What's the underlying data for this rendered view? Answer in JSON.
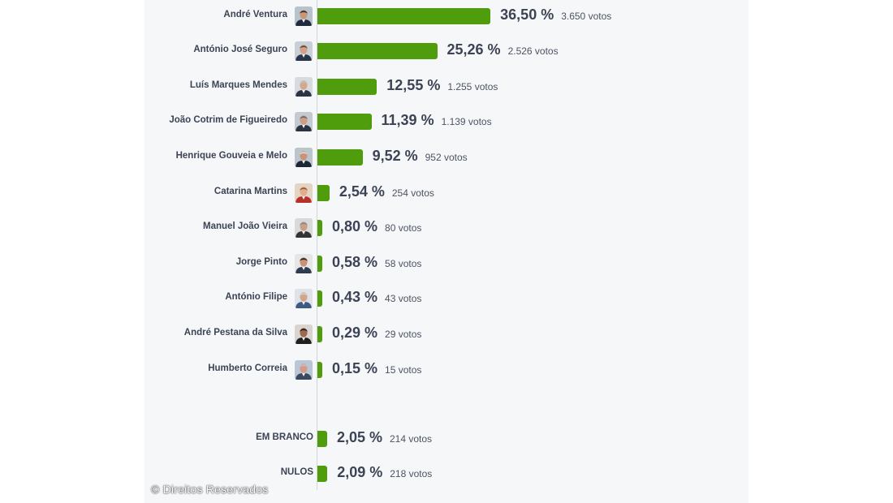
{
  "chart_data": {
    "type": "bar",
    "orientation": "horizontal",
    "colors": {
      "bar": "#4f9c0d",
      "text": "#3b4354",
      "panel": "#f6f7f9"
    },
    "candidates": [
      {
        "name": "André Ventura",
        "percent": 36.5,
        "percent_label": "36,50 %",
        "votes_label": "3.650 votos",
        "avatar": {
          "bg": "#b8c2cc",
          "skin": "#c99676",
          "hair": "#3a2a20",
          "suit": "#1f2a3c"
        }
      },
      {
        "name": "António José Seguro",
        "percent": 25.26,
        "percent_label": "25,26 %",
        "votes_label": "2.526 votos",
        "avatar": {
          "bg": "#c9cfd6",
          "skin": "#d2a184",
          "hair": "#5a4a40",
          "suit": "#27364a"
        }
      },
      {
        "name": "Luís Marques Mendes",
        "percent": 12.55,
        "percent_label": "12,55 %",
        "votes_label": "1.255 votos",
        "avatar": {
          "bg": "#d7dbe0",
          "skin": "#d6a88b",
          "hair": "#bdbdbd",
          "suit": "#2a3445"
        }
      },
      {
        "name": "João Cotrim de Figueiredo",
        "percent": 11.39,
        "percent_label": "11,39 %",
        "votes_label": "1.139 votos",
        "avatar": {
          "bg": "#c4cad1",
          "skin": "#cf9d80",
          "hair": "#6b6b6b",
          "suit": "#2c3340"
        }
      },
      {
        "name": "Henrique Gouveia e Melo",
        "percent": 9.52,
        "percent_label": "9,52 %",
        "votes_label": "952 votos",
        "avatar": {
          "bg": "#bcc4cc",
          "skin": "#c89577",
          "hair": "#d8d8d8",
          "suit": "#1d2636"
        }
      },
      {
        "name": "Catarina Martins",
        "percent": 2.54,
        "percent_label": "2,54 %",
        "votes_label": "254 votos",
        "avatar": {
          "bg": "#e4d4c4",
          "skin": "#e0ad90",
          "hair": "#9a5a2e",
          "suit": "#b8302a"
        }
      },
      {
        "name": "Manuel João Vieira",
        "percent": 0.8,
        "percent_label": "0,80 %",
        "votes_label": "80 votos",
        "avatar": {
          "bg": "#d9d9d9",
          "skin": "#c7a088",
          "hair": "#8a8a8a",
          "suit": "#333333"
        }
      },
      {
        "name": "Jorge Pinto",
        "percent": 0.58,
        "percent_label": "0,58 %",
        "votes_label": "58 votos",
        "avatar": {
          "bg": "#e6e6e6",
          "skin": "#c99272",
          "hair": "#2b2320",
          "suit": "#2e3b50"
        }
      },
      {
        "name": "António Filipe",
        "percent": 0.43,
        "percent_label": "0,43 %",
        "votes_label": "43 votos",
        "avatar": {
          "bg": "#dfe3e8",
          "skin": "#d3a48a",
          "hair": "#cfcfcf",
          "suit": "#3d5a80"
        }
      },
      {
        "name": "André Pestana da Silva",
        "percent": 0.29,
        "percent_label": "0,29 %",
        "votes_label": "29 votos",
        "avatar": {
          "bg": "#d9d4cf",
          "skin": "#9c6a4c",
          "hair": "#2a1e18",
          "suit": "#1f1f1f"
        }
      },
      {
        "name": "Humberto Correia",
        "percent": 0.15,
        "percent_label": "0,15 %",
        "votes_label": "15 votos",
        "avatar": {
          "bg": "#b9c6d6",
          "skin": "#d89a86",
          "hair": "#bfbfbf",
          "suit": "#3c4a60"
        }
      }
    ],
    "special": [
      {
        "name": "EM BRANCO",
        "percent": 2.05,
        "percent_label": "2,05 %",
        "votes_label": "214 votos"
      },
      {
        "name": "NULOS",
        "percent": 2.09,
        "percent_label": "2,09 %",
        "votes_label": "218 votos"
      }
    ]
  },
  "watermark": "© Direitos Reservados"
}
